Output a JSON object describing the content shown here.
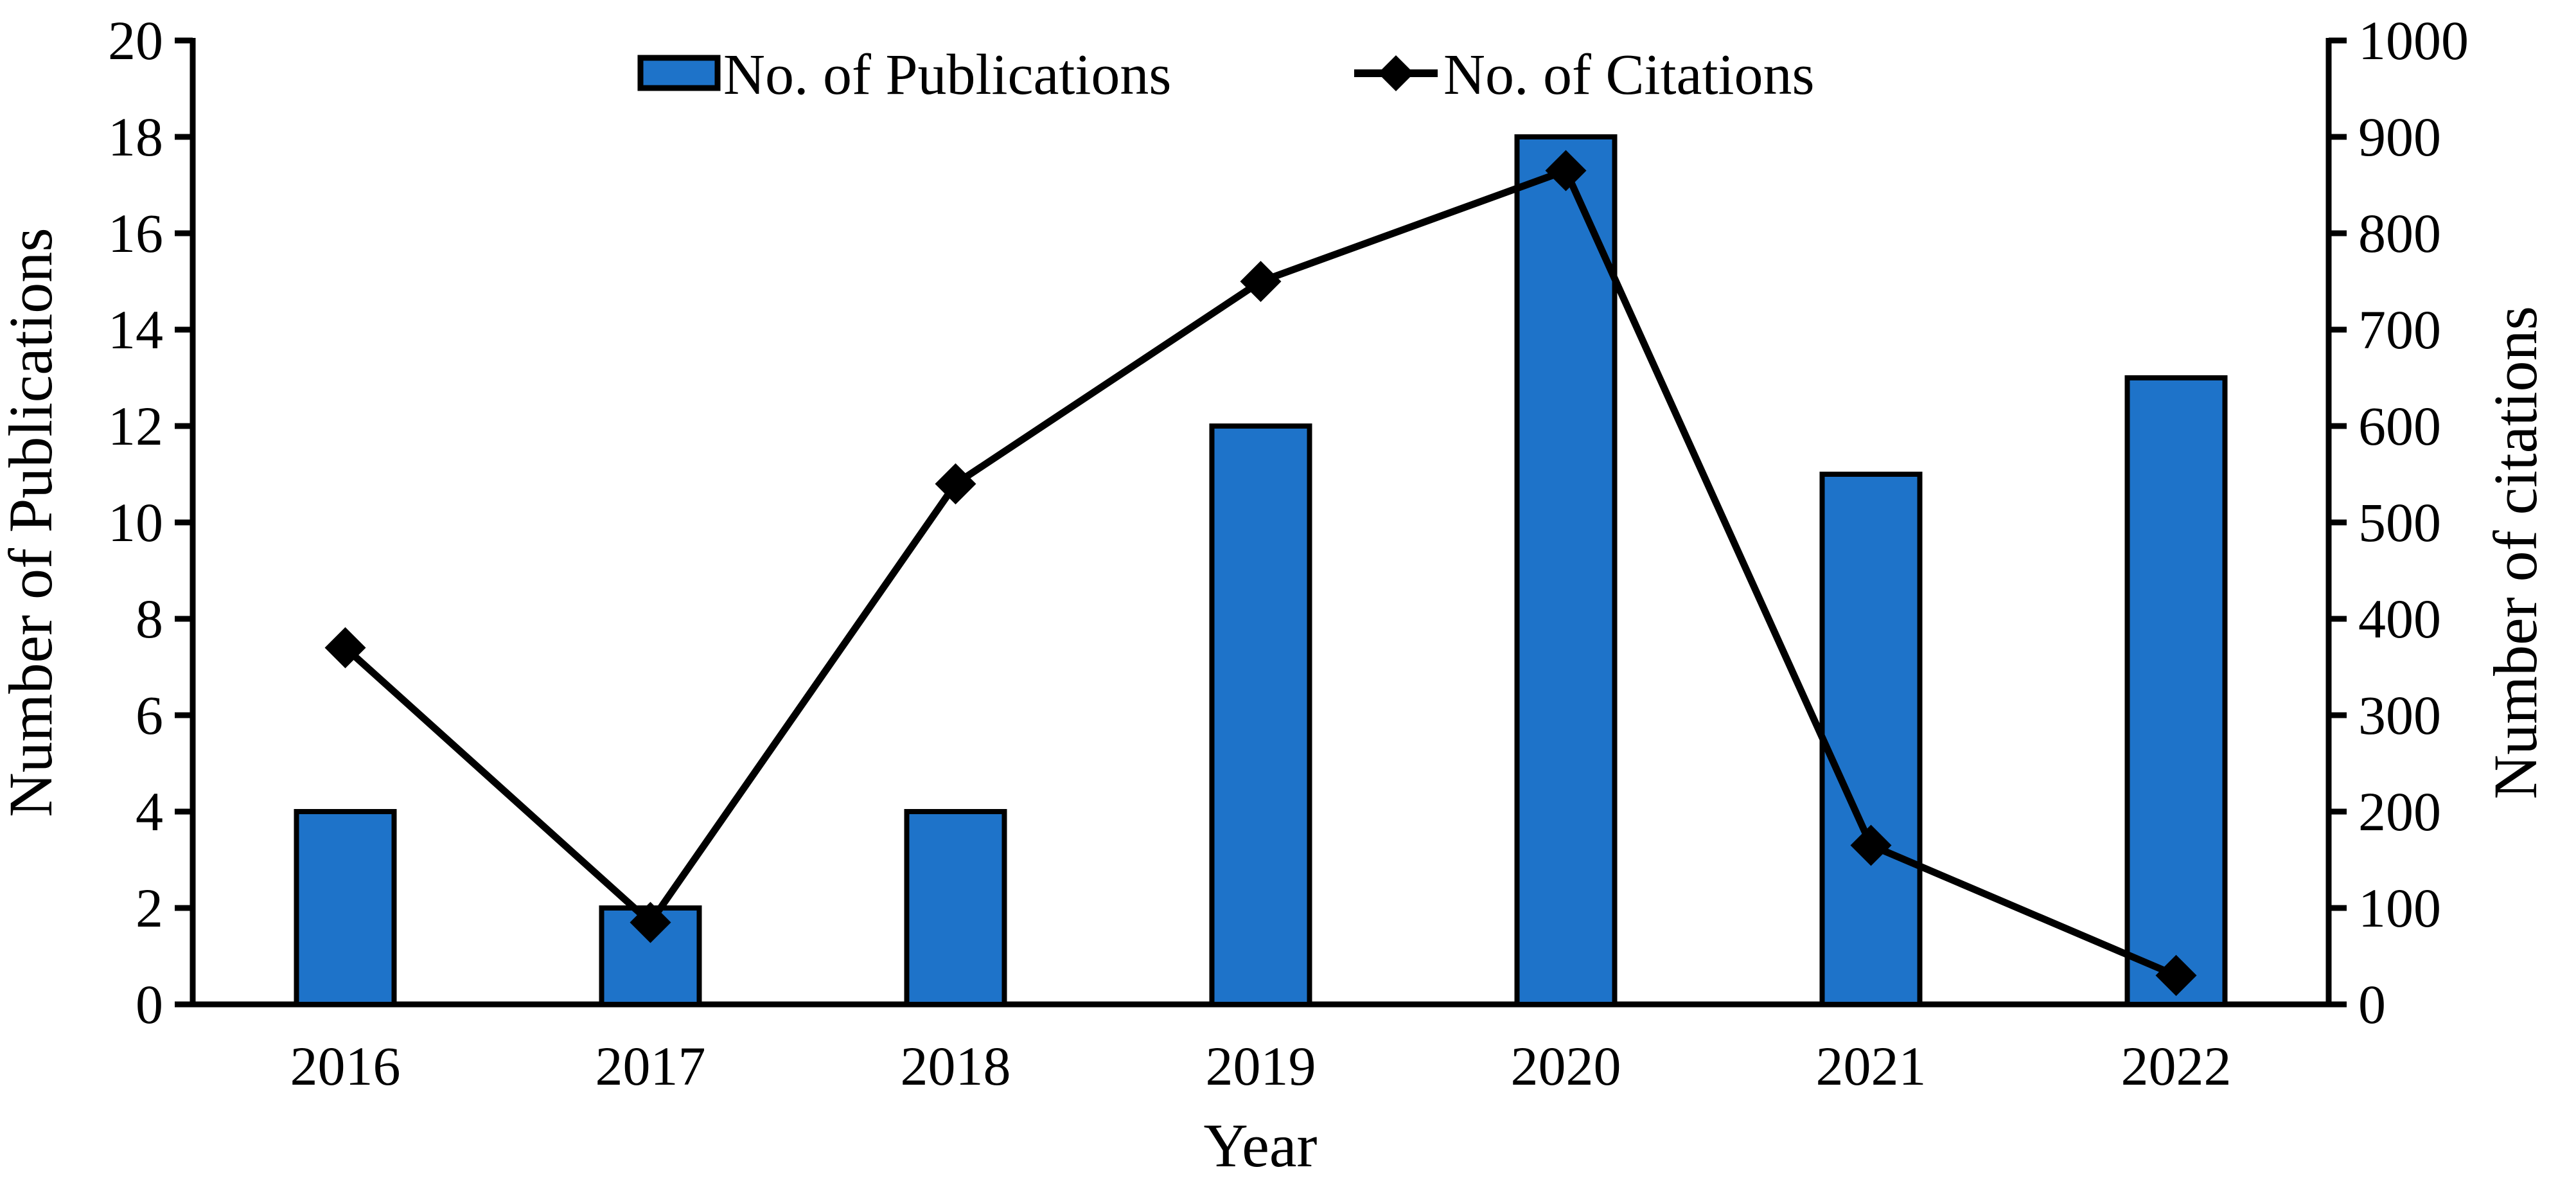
{
  "chart_data": {
    "type": "bar",
    "combo": "bar+line",
    "title": "",
    "xlabel": "Year",
    "categories": [
      "2016",
      "2017",
      "2018",
      "2019",
      "2020",
      "2021",
      "2022"
    ],
    "series": [
      {
        "name": "No. of Publications",
        "type": "bar",
        "axis": "left",
        "values": [
          4,
          2,
          4,
          12,
          18,
          11,
          13
        ],
        "fill_color": "#1E73C9",
        "border_color": "#000000"
      },
      {
        "name": "No. of Citations",
        "type": "line",
        "axis": "right",
        "marker": "diamond",
        "values": [
          370,
          85,
          540,
          750,
          865,
          165,
          30
        ],
        "line_color": "#000000",
        "marker_color": "#000000"
      }
    ],
    "left_axis": {
      "label": "Number of Publications",
      "min": 0,
      "max": 20,
      "step": 2,
      "ticks": [
        0,
        2,
        4,
        6,
        8,
        10,
        12,
        14,
        16,
        18,
        20
      ]
    },
    "right_axis": {
      "label": "Number of citations",
      "min": 0,
      "max": 1000,
      "step": 100,
      "ticks": [
        0,
        100,
        200,
        300,
        400,
        500,
        600,
        700,
        800,
        900,
        1000
      ]
    },
    "grid": false,
    "legend_position": "top-center",
    "background_color": "#ffffff"
  }
}
